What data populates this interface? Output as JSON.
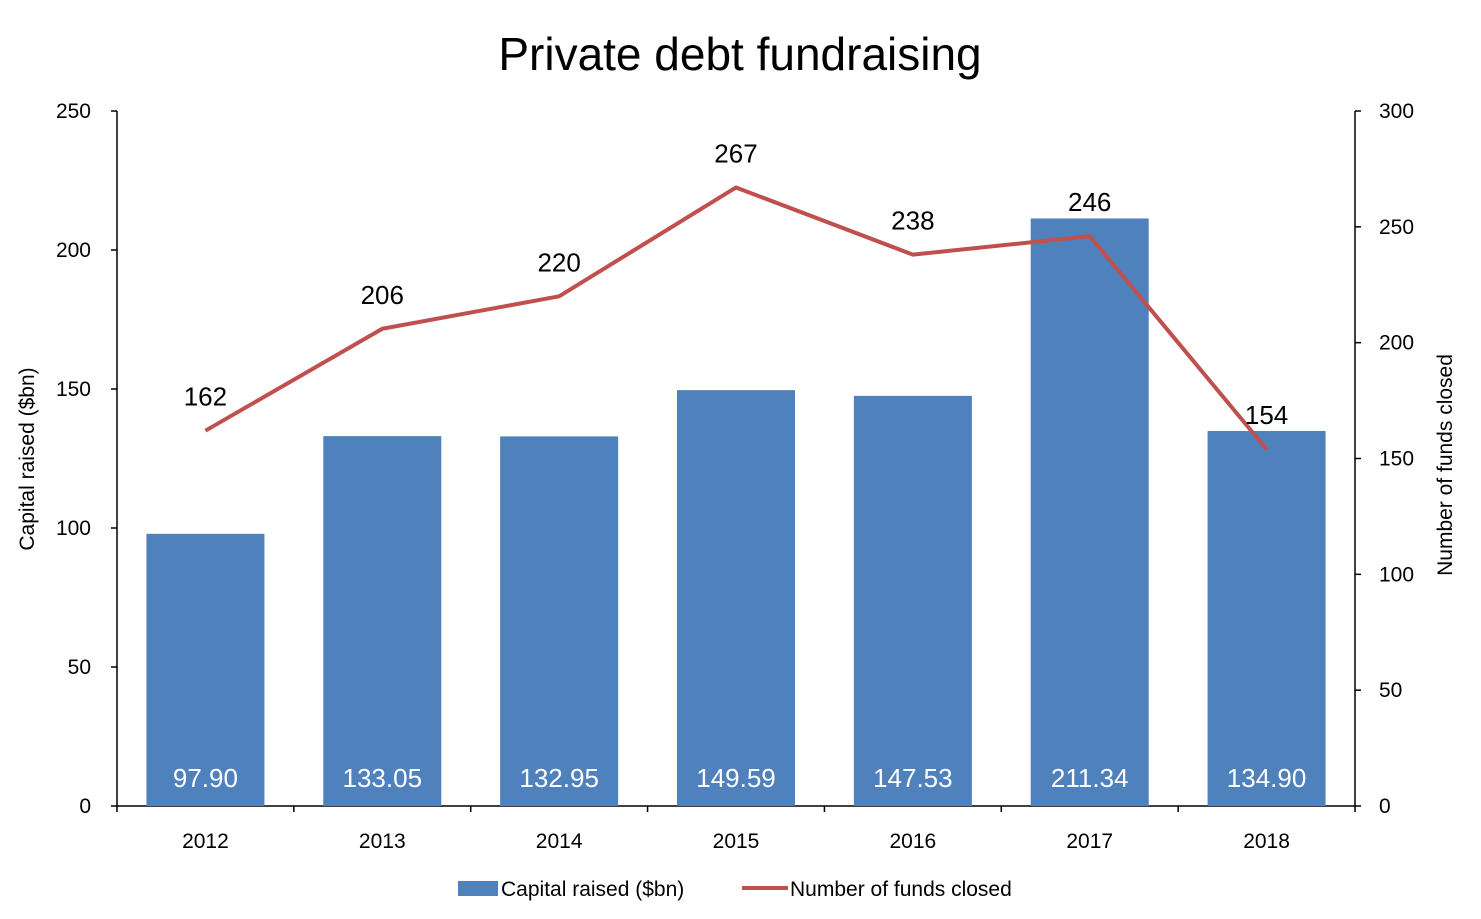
{
  "chart_data": {
    "type": "bar",
    "title": "Private debt fundraising",
    "categories": [
      "2012",
      "2013",
      "2014",
      "2015",
      "2016",
      "2017",
      "2018"
    ],
    "series": [
      {
        "name": "Capital raised ($bn)",
        "type": "bar",
        "axis": "left",
        "color": "#4F81BD",
        "values": [
          97.9,
          133.05,
          132.95,
          149.59,
          147.53,
          211.34,
          134.9
        ],
        "labels": [
          "97.90",
          "133.05",
          "132.95",
          "149.59",
          "147.53",
          "211.34",
          "134.90"
        ]
      },
      {
        "name": "Number of funds closed",
        "type": "line",
        "axis": "right",
        "color": "#C0504D",
        "values": [
          162,
          206,
          220,
          267,
          238,
          246,
          154
        ],
        "labels": [
          "162",
          "206",
          "220",
          "267",
          "238",
          "246",
          "154"
        ]
      }
    ],
    "y_left": {
      "label": "Capital raised ($bn)",
      "lim": [
        0,
        250
      ],
      "ticks": [
        "0",
        "50",
        "100",
        "150",
        "200",
        "250"
      ]
    },
    "y_right": {
      "label": "Number of funds closed",
      "lim": [
        0,
        300
      ],
      "ticks": [
        "0",
        "50",
        "100",
        "150",
        "200",
        "250",
        "300"
      ]
    },
    "grid": false,
    "legend": "bottom"
  }
}
